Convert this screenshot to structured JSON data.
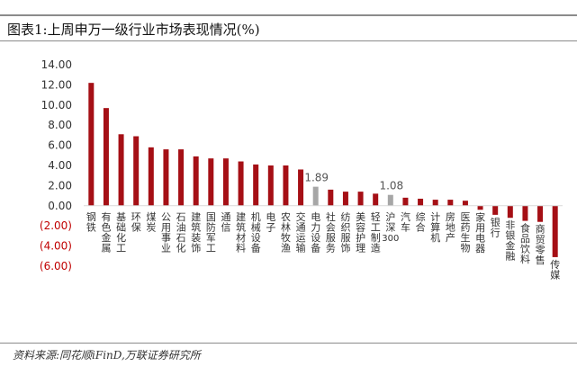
{
  "header": {
    "title": "图表1:上周申万一级行业市场表现情况(%)"
  },
  "footer": {
    "source": "资料来源:同花顺iFinD,万联证券研究所"
  },
  "chart_data": {
    "type": "bar",
    "title": "图表1:上周申万一级行业市场表现情况(%)",
    "xlabel": "",
    "ylabel": "",
    "ylim": [
      -6,
      14
    ],
    "yticks": [
      14,
      12,
      10,
      8,
      6,
      4,
      2,
      0,
      -2,
      -4,
      -6
    ],
    "ytick_labels": [
      "14.00",
      "12.00",
      "10.00",
      "8.00",
      "6.00",
      "4.00",
      "2.00",
      "0.00",
      "(2.00)",
      "(4.00)",
      "(6.00)"
    ],
    "grid": false,
    "legend": "none",
    "categories": [
      "钢铁",
      "有色金属",
      "基础化工",
      "环保",
      "煤炭",
      "公用事业",
      "石油石化",
      "建筑装饰",
      "国防军工",
      "通信",
      "建筑材料",
      "机械设备",
      "电子",
      "农林牧渔",
      "交通运输",
      "电力设备",
      "社会服务",
      "纺织服饰",
      "美容护理",
      "轻工制造",
      "沪深300",
      "汽车",
      "综合",
      "计算机",
      "房地产",
      "医药生物",
      "家用电器",
      "银行",
      "非银金融",
      "食品饮料",
      "商贸零售",
      "传媒"
    ],
    "values": [
      12.2,
      9.7,
      7.1,
      6.9,
      5.8,
      5.6,
      5.6,
      4.9,
      4.7,
      4.7,
      4.4,
      4.1,
      4.0,
      4.0,
      3.6,
      1.89,
      1.6,
      1.4,
      1.4,
      1.2,
      1.08,
      0.8,
      0.7,
      0.6,
      0.6,
      0.5,
      -0.4,
      -0.9,
      -1.2,
      -1.5,
      -1.6,
      -5.1
    ],
    "highlight": {
      "电力设备": "1.89",
      "沪深300": "1.08"
    },
    "colors": {
      "bar": "#a50f15",
      "highlight": "#a6a6a6",
      "negative_label": "#c00000",
      "axis_label": "#333333"
    }
  }
}
